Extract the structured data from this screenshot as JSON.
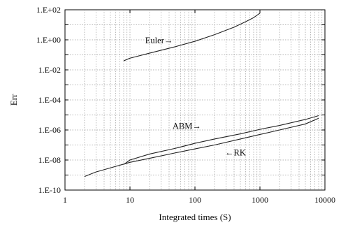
{
  "chart_data": {
    "type": "line",
    "xlabel": "Integrated times (S)",
    "ylabel": "Err",
    "xscale": "log",
    "yscale": "log",
    "xlim": [
      1,
      10000
    ],
    "ylim": [
      1e-10,
      100
    ],
    "grid": true,
    "x_tick_labels": [
      "1",
      "10",
      "100",
      "1000",
      "10000"
    ],
    "y_tick_labels": [
      "1.E+02",
      "1.E+00",
      "1.E-02",
      "1.E-04",
      "1.E-06",
      "1.E-08",
      "1.E-10"
    ],
    "series": [
      {
        "name": "Euler",
        "x": [
          8,
          10,
          20,
          50,
          100,
          200,
          400,
          600,
          800,
          1000
        ],
        "y": [
          0.04,
          0.06,
          0.13,
          0.35,
          0.8,
          2.2,
          7,
          16,
          30,
          60
        ]
      },
      {
        "name": "ABM",
        "x": [
          8,
          10,
          20,
          50,
          100,
          200,
          500,
          1000,
          2000,
          5000,
          8000
        ],
        "y": [
          5e-09,
          1e-08,
          2.5e-08,
          6e-08,
          1.3e-07,
          2.5e-07,
          5.5e-07,
          1.1e-06,
          2e-06,
          5e-06,
          9e-06
        ]
      },
      {
        "name": "RK",
        "x": [
          2,
          3,
          5,
          10,
          20,
          50,
          100,
          200,
          500,
          1000,
          2000,
          5000,
          8000
        ],
        "y": [
          8e-10,
          1.6e-09,
          3e-09,
          7e-09,
          1.3e-08,
          3e-08,
          5.5e-08,
          1e-07,
          2.5e-07,
          5e-07,
          1e-06,
          2.5e-06,
          6e-06
        ]
      }
    ],
    "annotations": [
      {
        "text": "Euler→",
        "x": 28,
        "y": 0.6
      },
      {
        "text": "ABM→",
        "x": 75,
        "y": 1.2e-06
      },
      {
        "text": "←RK",
        "x": 420,
        "y": 2e-08
      }
    ]
  }
}
